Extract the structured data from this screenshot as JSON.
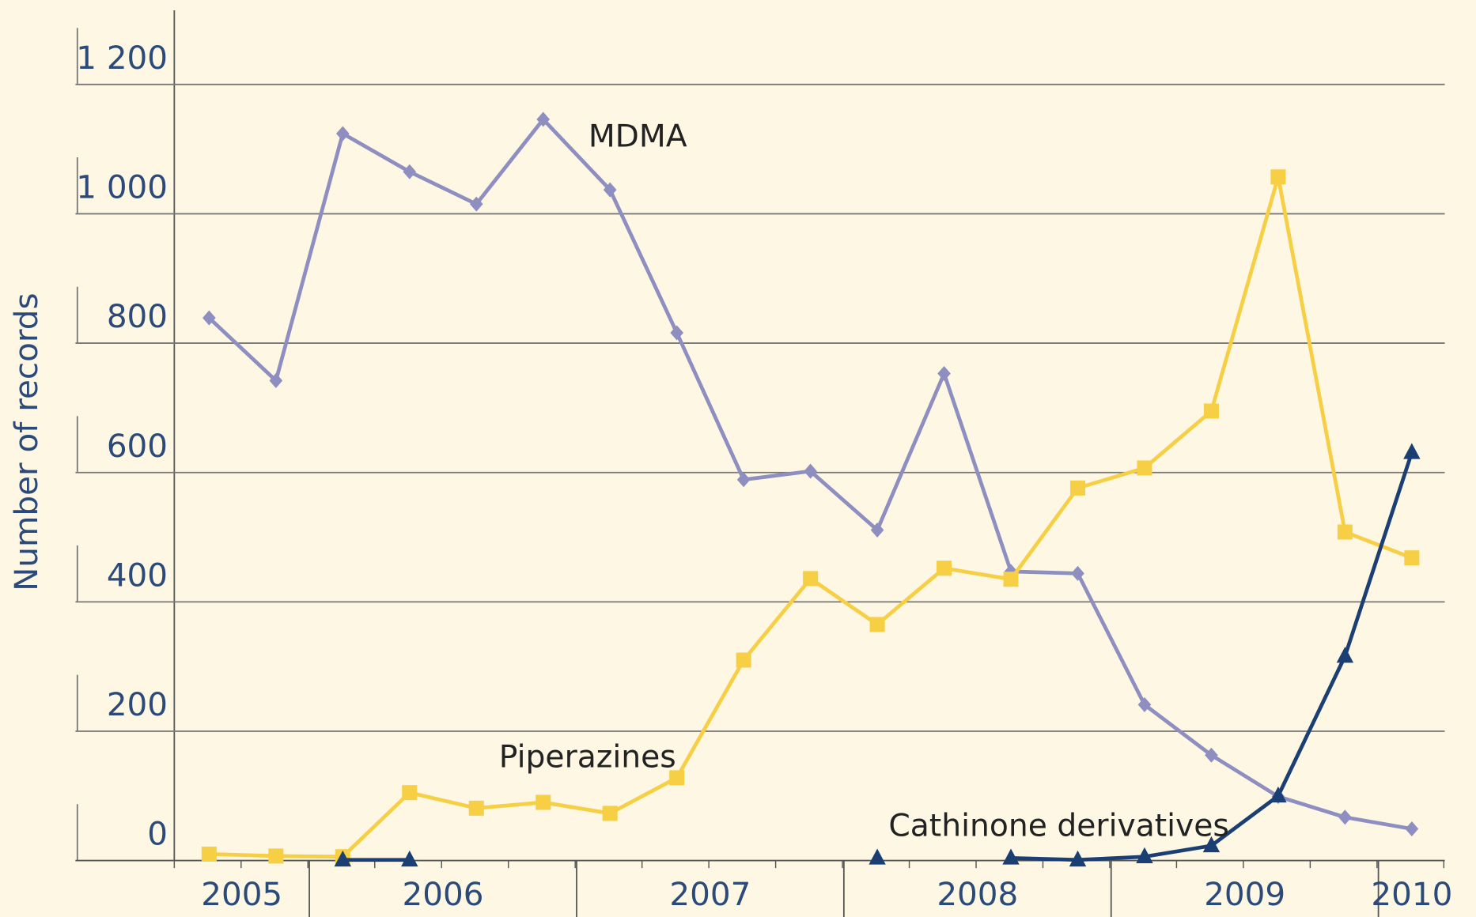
{
  "chart_data": {
    "type": "line",
    "y_label": "Number of records",
    "categories": [
      null,
      null,
      null,
      null,
      null,
      null,
      null,
      null,
      null,
      null,
      null,
      null,
      null,
      null,
      null,
      null,
      null,
      null,
      null
    ],
    "year_labels": [
      "2005",
      "2006",
      "2007",
      "2008",
      "2009",
      "2010"
    ],
    "ylim": [
      0,
      1300
    ],
    "yticks": [
      0,
      200,
      400,
      600,
      800,
      {
        "value": 1000,
        "label": "1 000"
      },
      {
        "value": 1200,
        "label": "1 200"
      }
    ],
    "grid": true,
    "series": [
      {
        "name": "MDMA",
        "color": "#8e8fc0",
        "marker": "diamond",
        "values": [
          839,
          742,
          1124,
          1065,
          1015,
          1146,
          1037,
          816,
          589,
          602,
          511,
          753,
          447,
          444,
          241,
          163,
          99,
          67,
          49
        ]
      },
      {
        "name": "Piperazines",
        "color": "#f7cf45",
        "marker": "square",
        "values": [
          10,
          7,
          6,
          105,
          81,
          90,
          73,
          128,
          310,
          436,
          365,
          452,
          435,
          576,
          607,
          695,
          1057,
          508,
          468
        ]
      },
      {
        "name": "Cathinone derivatives",
        "color": "#1b3f73",
        "marker": "triangle",
        "values": [
          null,
          null,
          1,
          1,
          null,
          null,
          null,
          null,
          null,
          null,
          4,
          null,
          4,
          1,
          6,
          23,
          100,
          316,
          631
        ]
      }
    ]
  }
}
